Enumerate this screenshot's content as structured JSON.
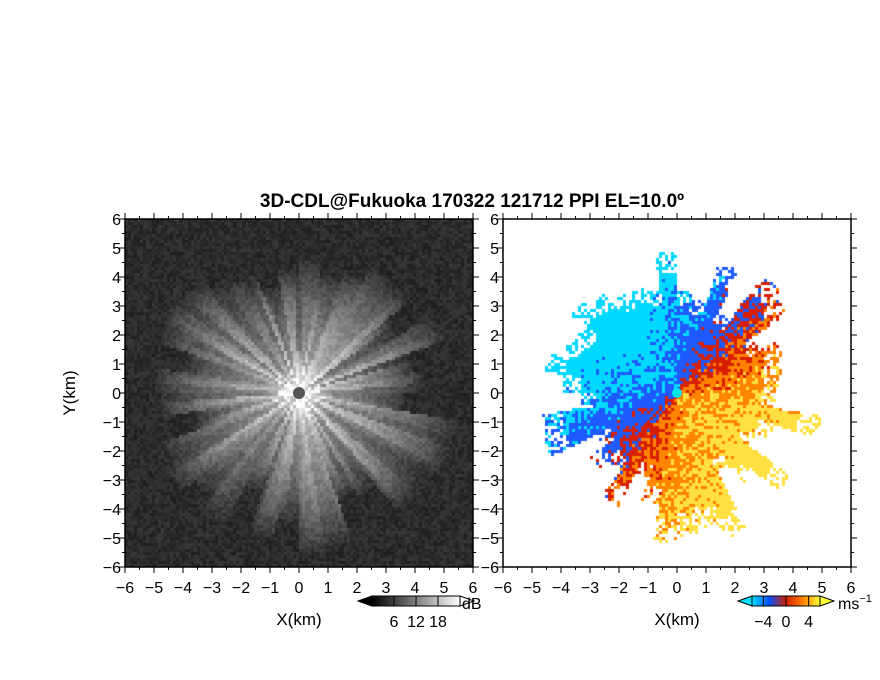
{
  "figure": {
    "title": "3D-CDL@Fukuoka 170322 121712 PPI EL=10.0º"
  },
  "chart_data": [
    {
      "type": "heatmap",
      "name": "reflectivity",
      "xlabel": "X(km)",
      "ylabel": "Y(km)",
      "xlim": [
        -6,
        6
      ],
      "ylim": [
        -6,
        6
      ],
      "xticks": [
        "−6",
        "−5",
        "−4",
        "−3",
        "−2",
        "−1",
        "0",
        "1",
        "2",
        "3",
        "4",
        "5",
        "6"
      ],
      "yticks": [
        "−6",
        "−5",
        "−4",
        "−3",
        "−2",
        "−1",
        "0",
        "1",
        "2",
        "3",
        "4",
        "5",
        "6"
      ],
      "radar_center": [
        0,
        0
      ],
      "echo_radius_km": 4.5,
      "colorbar": {
        "unit": "dB",
        "ticks": [
          "6",
          "12",
          "18"
        ],
        "tick_values": [
          6,
          12,
          18
        ],
        "range": [
          0,
          24
        ],
        "colors": [
          "#000000",
          "#ffffff"
        ]
      }
    },
    {
      "type": "heatmap",
      "name": "doppler-velocity",
      "xlabel": "X(km)",
      "ylabel": "",
      "xlim": [
        -6,
        6
      ],
      "ylim": [
        -6,
        6
      ],
      "xticks": [
        "−6",
        "−5",
        "−4",
        "−3",
        "−2",
        "−1",
        "0",
        "1",
        "2",
        "3",
        "4",
        "5",
        "6"
      ],
      "yticks": [
        "−6",
        "−5",
        "−4",
        "−3",
        "−2",
        "−1",
        "0",
        "1",
        "2",
        "3",
        "4",
        "5",
        "6"
      ],
      "radar_center": [
        0,
        0
      ],
      "echo_radius_km": 4.3,
      "colorbar": {
        "unit": "ms",
        "unit_exp": "−1",
        "ticks": [
          "−4",
          "0",
          "4"
        ],
        "tick_values": [
          -4,
          0,
          4
        ],
        "range": [
          -6,
          6
        ],
        "colors": [
          "#00e0ff",
          "#0050ff",
          "#d21e00",
          "#ff8000",
          "#ffff33"
        ]
      }
    }
  ]
}
